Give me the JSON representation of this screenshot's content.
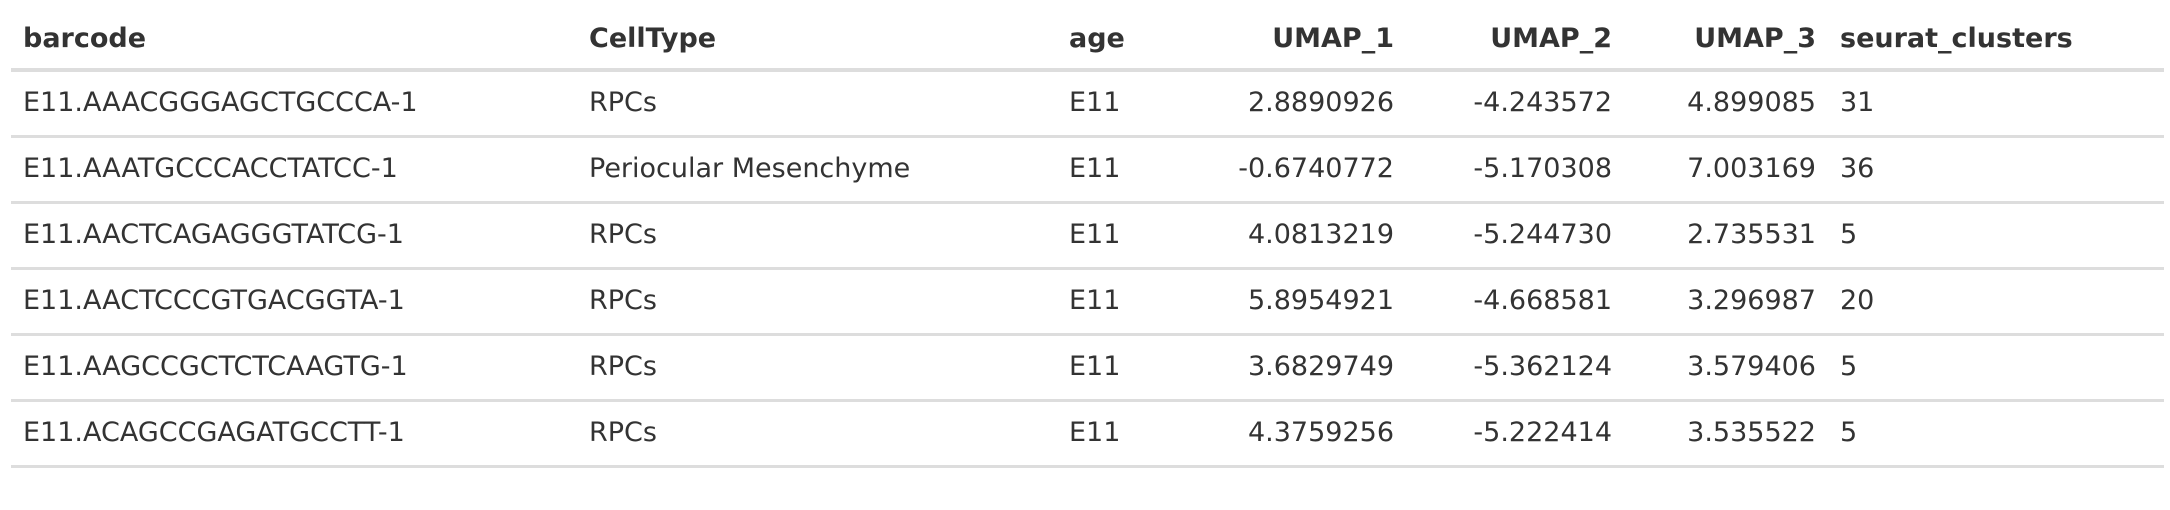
{
  "table": {
    "columns": [
      {
        "key": "barcode",
        "label": "barcode",
        "align": "left"
      },
      {
        "key": "celltype",
        "label": "CellType",
        "align": "left"
      },
      {
        "key": "age",
        "label": "age",
        "align": "left"
      },
      {
        "key": "umap1",
        "label": "UMAP_1",
        "align": "right"
      },
      {
        "key": "umap2",
        "label": "UMAP_2",
        "align": "right"
      },
      {
        "key": "umap3",
        "label": "UMAP_3",
        "align": "right"
      },
      {
        "key": "clusters",
        "label": "seurat_clusters",
        "align": "left"
      }
    ],
    "rows": [
      {
        "barcode": "E11.AAACGGGAGCTGCCCA-1",
        "celltype": "RPCs",
        "age": "E11",
        "umap1": "2.8890926",
        "umap2": "-4.243572",
        "umap3": "4.899085",
        "clusters": "31"
      },
      {
        "barcode": "E11.AAATGCCCACCTATCC-1",
        "celltype": "Periocular Mesenchyme",
        "age": "E11",
        "umap1": "-0.6740772",
        "umap2": "-5.170308",
        "umap3": "7.003169",
        "clusters": "36"
      },
      {
        "barcode": "E11.AACTCAGAGGGTATCG-1",
        "celltype": "RPCs",
        "age": "E11",
        "umap1": "4.0813219",
        "umap2": "-5.244730",
        "umap3": "2.735531",
        "clusters": "5"
      },
      {
        "barcode": "E11.AACTCCCGTGACGGTA-1",
        "celltype": "RPCs",
        "age": "E11",
        "umap1": "5.8954921",
        "umap2": "-4.668581",
        "umap3": "3.296987",
        "clusters": "20"
      },
      {
        "barcode": "E11.AAGCCGCTCTCAAGTG-1",
        "celltype": "RPCs",
        "age": "E11",
        "umap1": "3.6829749",
        "umap2": "-5.362124",
        "umap3": "3.579406",
        "clusters": "5"
      },
      {
        "barcode": "E11.ACAGCCGAGATGCCTT-1",
        "celltype": "RPCs",
        "age": "E11",
        "umap1": "4.3759256",
        "umap2": "-5.222414",
        "umap3": "3.535522",
        "clusters": "5"
      }
    ]
  }
}
